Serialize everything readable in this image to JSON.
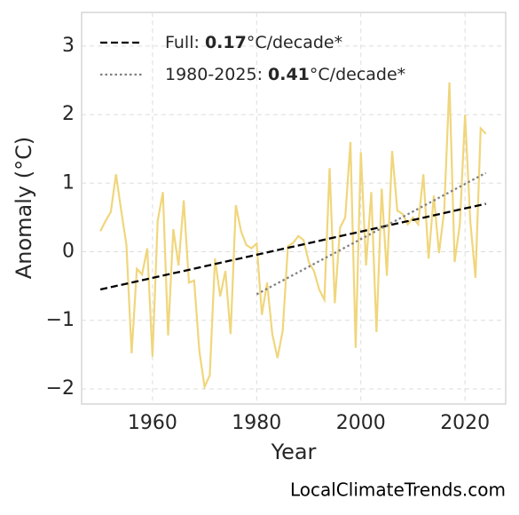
{
  "chart_data": {
    "type": "line",
    "xlabel": "Year",
    "ylabel": "Anomaly (°C)",
    "footer": "LocalClimateTrends.com",
    "xlim": [
      1946.4,
      2027.8
    ],
    "xticks": [
      1960,
      1980,
      2000,
      2020
    ],
    "ylim": [
      -2.22,
      3.49
    ],
    "yticks": [
      {
        "value": -2,
        "label": "−2"
      },
      {
        "value": -1,
        "label": "−1"
      },
      0,
      1,
      2,
      3
    ],
    "grid": true,
    "legend": "upper left",
    "series": [
      {
        "name": null,
        "color": "#f0d67c",
        "style": "solid",
        "x": [
          1950,
          1951,
          1952,
          1953,
          1954,
          1955,
          1956,
          1957,
          1958,
          1959,
          1960,
          1961,
          1962,
          1963,
          1964,
          1965,
          1966,
          1967,
          1968,
          1969,
          1970,
          1971,
          1972,
          1973,
          1974,
          1975,
          1976,
          1977,
          1978,
          1979,
          1980,
          1981,
          1982,
          1983,
          1984,
          1985,
          1986,
          1987,
          1988,
          1989,
          1990,
          1991,
          1992,
          1993,
          1994,
          1995,
          1996,
          1997,
          1998,
          1999,
          2000,
          2001,
          2002,
          2003,
          2004,
          2005,
          2006,
          2007,
          2008,
          2009,
          2010,
          2011,
          2012,
          2013,
          2014,
          2015,
          2016,
          2017,
          2018,
          2019,
          2020,
          2021,
          2022,
          2023,
          2024
        ],
        "values": [
          0.3,
          0.45,
          0.58,
          1.13,
          0.6,
          0.1,
          -1.48,
          -0.25,
          -0.33,
          0.05,
          -1.53,
          0.45,
          0.87,
          -1.22,
          0.33,
          -0.2,
          0.75,
          -0.45,
          -0.42,
          -1.45,
          -1.97,
          -1.8,
          -0.1,
          -0.65,
          -0.28,
          -1.2,
          0.68,
          0.3,
          0.1,
          0.05,
          0.12,
          -0.92,
          -0.45,
          -1.2,
          -1.55,
          -1.15,
          0.08,
          0.13,
          0.23,
          0.17,
          -0.15,
          -0.28,
          -0.55,
          -0.7,
          1.22,
          -0.75,
          0.35,
          0.5,
          1.6,
          -1.4,
          1.45,
          -0.2,
          0.87,
          -1.17,
          0.92,
          -0.35,
          1.47,
          0.6,
          0.55,
          0.4,
          0.5,
          0.4,
          1.13,
          -0.1,
          0.82,
          -0.02,
          0.6,
          2.47,
          -0.15,
          0.4,
          2.0,
          0.45,
          -0.38,
          1.8,
          1.72
        ]
      },
      {
        "name": "Full: 0.17°C/decade*",
        "color": "#000000",
        "style": "dashed",
        "x": [
          1950,
          2024
        ],
        "values": [
          -0.55,
          0.7
        ]
      },
      {
        "name": "1980-2025: 0.41°C/decade*",
        "color": "#808080",
        "style": "dotted",
        "x": [
          1980,
          2024
        ],
        "values": [
          -0.62,
          1.15
        ]
      }
    ]
  }
}
